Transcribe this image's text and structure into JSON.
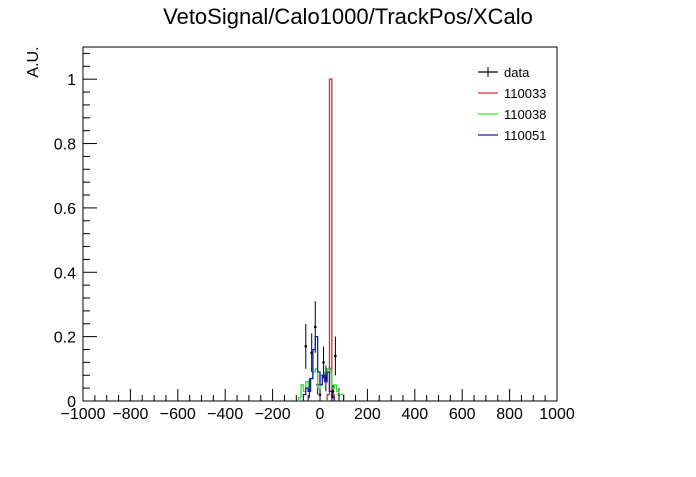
{
  "chart_data": {
    "type": "histogram",
    "title": "VetoSignal/Calo1000/TrackPos/XCalo",
    "xlabel": "",
    "ylabel": "A.U.",
    "xlim": [
      -1000,
      1000
    ],
    "ylim": [
      0,
      1.1
    ],
    "x_ticks": [
      -1000,
      -800,
      -600,
      -400,
      -200,
      0,
      200,
      400,
      600,
      800,
      1000
    ],
    "x_tick_labels": [
      "−1000",
      "−800",
      "−600",
      "−400",
      "−200",
      "0",
      "200",
      "400",
      "600",
      "800",
      "1000"
    ],
    "y_ticks": [
      0,
      0.2,
      0.4,
      0.6,
      0.8,
      1
    ],
    "y_tick_labels": [
      "0",
      "0.2",
      "0.4",
      "0.6",
      "0.8",
      "1"
    ],
    "grid": false,
    "legend_position": "top-right",
    "legend": [
      {
        "name": "data",
        "color": "#000000"
      },
      {
        "name": "110033",
        "color": "#cc3333"
      },
      {
        "name": "110038",
        "color": "#33dd33"
      },
      {
        "name": "110051",
        "color": "#1a1aa6"
      }
    ],
    "series": [
      {
        "name": "data",
        "kind": "points",
        "color": "#000000",
        "points": [
          {
            "x": -60,
            "y": 0.17,
            "err": 0.07
          },
          {
            "x": -45,
            "y": 0.04,
            "err": 0.03
          },
          {
            "x": -35,
            "y": 0.15,
            "err": 0.06
          },
          {
            "x": -20,
            "y": 0.23,
            "err": 0.08
          },
          {
            "x": -10,
            "y": 0.05,
            "err": 0.03
          },
          {
            "x": 0,
            "y": 0.02,
            "err": 0.02
          },
          {
            "x": 15,
            "y": 0.12,
            "err": 0.05
          },
          {
            "x": 25,
            "y": 0.07,
            "err": 0.04
          },
          {
            "x": 40,
            "y": 0.1,
            "err": 0.05
          },
          {
            "x": 55,
            "y": 0.03,
            "err": 0.02
          },
          {
            "x": 65,
            "y": 0.14,
            "err": 0.06
          },
          {
            "x": 80,
            "y": 0.02,
            "err": 0.02
          }
        ]
      },
      {
        "name": "110033",
        "kind": "bins",
        "color": "#cc3333",
        "bins": [
          {
            "x0": 30,
            "x1": 40,
            "y": 0.02
          },
          {
            "x0": 40,
            "x1": 50,
            "y": 1.0
          },
          {
            "x0": 50,
            "x1": 60,
            "y": 0.02
          }
        ]
      },
      {
        "name": "110038",
        "kind": "bins",
        "color": "#33dd33",
        "bins": [
          {
            "x0": -90,
            "x1": -80,
            "y": 0.01
          },
          {
            "x0": -80,
            "x1": -70,
            "y": 0.05
          },
          {
            "x0": -70,
            "x1": -60,
            "y": 0.03
          },
          {
            "x0": -60,
            "x1": -50,
            "y": 0.06
          },
          {
            "x0": -50,
            "x1": -40,
            "y": 0.04
          },
          {
            "x0": -40,
            "x1": -30,
            "y": 0.07
          },
          {
            "x0": -30,
            "x1": -20,
            "y": 0.09
          },
          {
            "x0": -20,
            "x1": -10,
            "y": 0.1
          },
          {
            "x0": -10,
            "x1": 0,
            "y": 0.04
          },
          {
            "x0": 0,
            "x1": 10,
            "y": 0.08
          },
          {
            "x0": 10,
            "x1": 20,
            "y": 0.07
          },
          {
            "x0": 20,
            "x1": 30,
            "y": 0.09
          },
          {
            "x0": 30,
            "x1": 40,
            "y": 0.1
          },
          {
            "x0": 40,
            "x1": 50,
            "y": 0.09
          },
          {
            "x0": 50,
            "x1": 60,
            "y": 0.04
          },
          {
            "x0": 60,
            "x1": 70,
            "y": 0.05
          },
          {
            "x0": 70,
            "x1": 80,
            "y": 0.03
          },
          {
            "x0": 80,
            "x1": 90,
            "y": 0.02
          },
          {
            "x0": 90,
            "x1": 100,
            "y": 0.02
          }
        ]
      },
      {
        "name": "110051",
        "kind": "bins",
        "color": "#1a1aa6",
        "bins": [
          {
            "x0": -70,
            "x1": -60,
            "y": 0.02
          },
          {
            "x0": -60,
            "x1": -50,
            "y": 0.04
          },
          {
            "x0": -50,
            "x1": -40,
            "y": 0.03
          },
          {
            "x0": -40,
            "x1": -30,
            "y": 0.07
          },
          {
            "x0": -30,
            "x1": -20,
            "y": 0.16
          },
          {
            "x0": -20,
            "x1": -10,
            "y": 0.2
          },
          {
            "x0": -10,
            "x1": 0,
            "y": 0.09
          },
          {
            "x0": 0,
            "x1": 10,
            "y": 0.05
          },
          {
            "x0": 10,
            "x1": 20,
            "y": 0.08
          },
          {
            "x0": 20,
            "x1": 30,
            "y": 0.06
          },
          {
            "x0": 30,
            "x1": 40,
            "y": 0.09
          },
          {
            "x0": 40,
            "x1": 50,
            "y": 0.03
          },
          {
            "x0": 50,
            "x1": 60,
            "y": 0.01
          }
        ]
      }
    ]
  }
}
